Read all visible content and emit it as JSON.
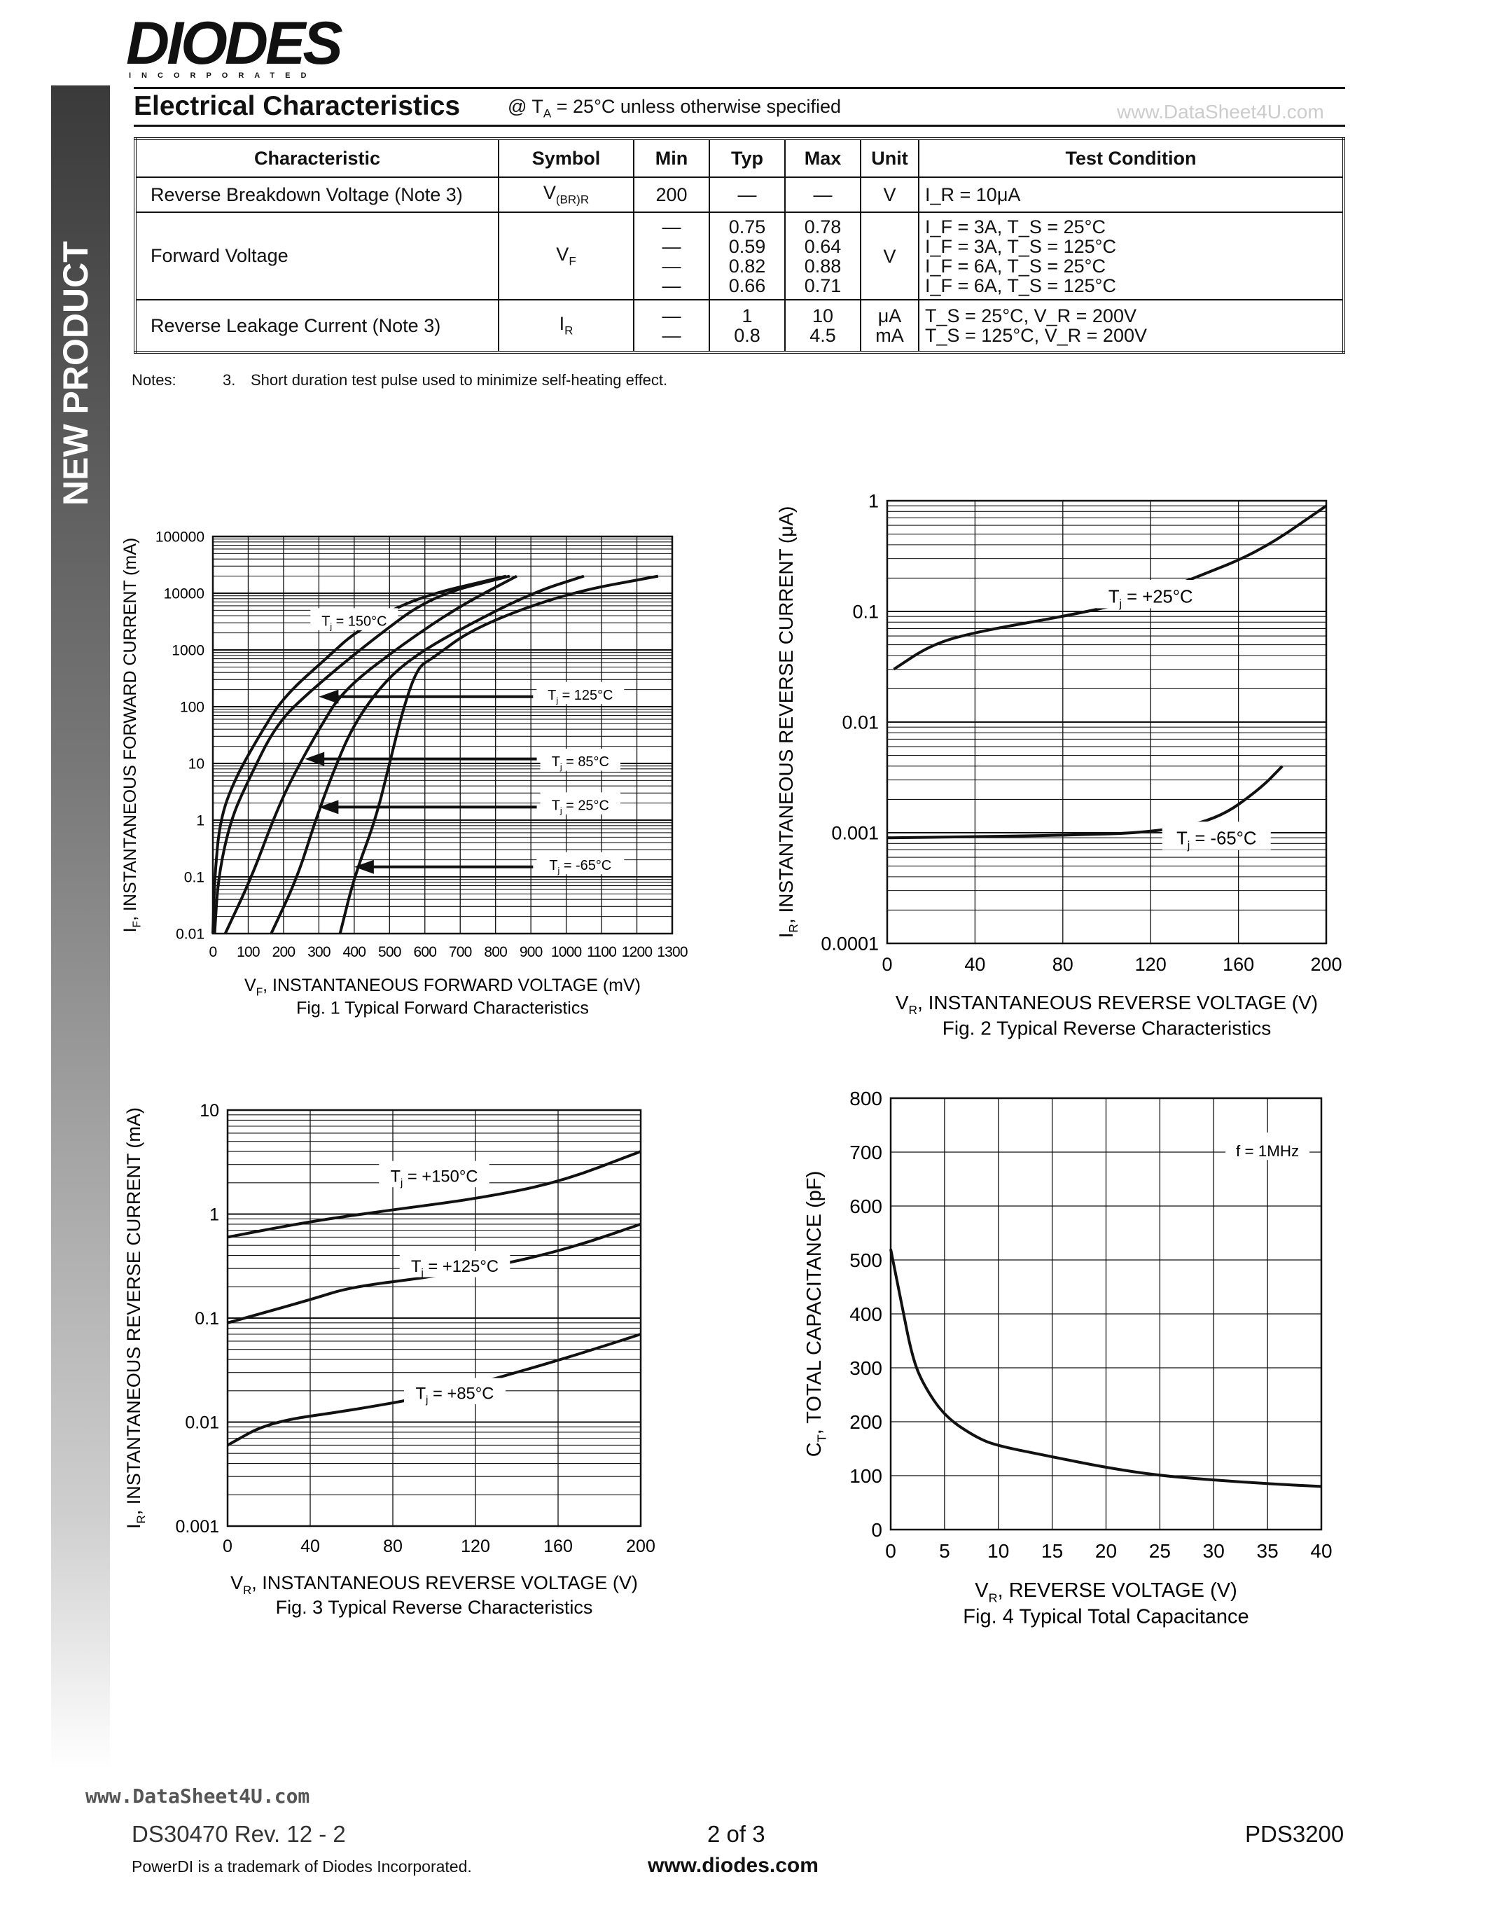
{
  "header": {
    "logo_text": "DIODES",
    "logo_sub": "INCORPORATED",
    "sidebar_label": "NEW PRODUCT",
    "title": "Electrical Characteristics",
    "condition_prefix": "@ T",
    "condition_sub": "A",
    "condition_suffix": " = 25°C unless otherwise specified"
  },
  "watermark": "www.DataSheet4U.com",
  "table": {
    "headers": [
      "Characteristic",
      "Symbol",
      "Min",
      "Typ",
      "Max",
      "Unit",
      "Test Condition"
    ],
    "rows": [
      {
        "characteristic": "Reverse Breakdown Voltage (Note 3)",
        "symbol": "V",
        "symbol_sub": "(BR)R",
        "min": "200",
        "typ": "—",
        "max": "—",
        "unit": "V",
        "conditions": [
          "I_R = 10μA"
        ]
      },
      {
        "characteristic": "Forward Voltage",
        "symbol": "V",
        "symbol_sub": "F",
        "min": [
          "—",
          "—",
          "—",
          "—"
        ],
        "typ": [
          "0.75",
          "0.59",
          "0.82",
          "0.66"
        ],
        "max": [
          "0.78",
          "0.64",
          "0.88",
          "0.71"
        ],
        "unit": "V",
        "conditions": [
          "I_F = 3A, T_S =  25°C",
          "I_F = 3A, T_S = 125°C",
          "I_F = 6A, T_S =  25°C",
          "I_F = 6A, T_S = 125°C"
        ]
      },
      {
        "characteristic": "Reverse Leakage Current (Note 3)",
        "symbol": "I",
        "symbol_sub": "R",
        "min": [
          "—",
          "—"
        ],
        "typ": [
          "1",
          "0.8"
        ],
        "max": [
          "10",
          "4.5"
        ],
        "unit": [
          "μA",
          "mA"
        ],
        "conditions": [
          "T_S =  25°C, V_R = 200V",
          "T_S = 125°C, V_R = 200V"
        ]
      }
    ]
  },
  "notes": {
    "label": "Notes:",
    "number": "3.",
    "text": "Short duration test pulse used to minimize self-heating effect."
  },
  "chart_data": [
    {
      "type": "line",
      "title": "Fig. 1  Typical Forward Characteristics",
      "xlabel": "V_F, INSTANTANEOUS FORWARD VOLTAGE (mV)",
      "ylabel": "I_F, INSTANTANEOUS FORWARD CURRENT (mA)",
      "xlim": [
        0,
        1300
      ],
      "ylim": [
        0.01,
        100000
      ],
      "yscale": "log",
      "grid": true,
      "xticks": [
        "0",
        "100",
        "200",
        "300",
        "400",
        "500",
        "600",
        "700",
        "800",
        "900",
        "1000",
        "1100",
        "1200",
        "1300"
      ],
      "yticks": [
        "0.01",
        "0.1",
        "1",
        "10",
        "100",
        "1000",
        "10000",
        "100000"
      ],
      "series": [
        {
          "name": "Tj = 150°C",
          "x": [
            0,
            5,
            20,
            60,
            130,
            200,
            330,
            400,
            560,
            830
          ],
          "y": [
            0.01,
            0.1,
            1,
            5,
            30,
            150,
            800,
            2000,
            8000,
            20000
          ]
        },
        {
          "name": "Tj = 125°C",
          "x": [
            5,
            15,
            50,
            100,
            180,
            280,
            450,
            620,
            840
          ],
          "y": [
            0.01,
            0.1,
            1,
            5,
            50,
            200,
            1500,
            9000,
            20000
          ]
        },
        {
          "name": "Tj = 85°C",
          "x": [
            35,
            110,
            170,
            220,
            300,
            370,
            540,
            700,
            860
          ],
          "y": [
            0.01,
            0.1,
            1,
            5,
            40,
            200,
            1300,
            6000,
            20000
          ]
        },
        {
          "name": "Tj = 25°C",
          "x": [
            165,
            240,
            290,
            350,
            400,
            480,
            560,
            680,
            900,
            1050
          ],
          "y": [
            0.01,
            0.1,
            1,
            10,
            50,
            250,
            700,
            2000,
            10000,
            20000
          ]
        },
        {
          "name": "Tj = -65°C",
          "x": [
            360,
            400,
            460,
            500,
            540,
            580,
            620,
            740,
            1000,
            1260
          ],
          "y": [
            0.01,
            0.1,
            1,
            10,
            100,
            500,
            700,
            2500,
            10000,
            20000
          ]
        }
      ]
    },
    {
      "type": "line",
      "title": "Fig. 2 Typical Reverse Characteristics",
      "xlabel": "V_R, INSTANTANEOUS REVERSE VOLTAGE (V)",
      "ylabel": "I_R, INSTANTANEOUS REVERSE CURRENT (μA)",
      "xlim": [
        0,
        200
      ],
      "ylim": [
        0.0001,
        1
      ],
      "yscale": "log",
      "grid": true,
      "xticks": [
        "0",
        "40",
        "80",
        "120",
        "160",
        "200"
      ],
      "yticks": [
        "0.0001",
        "0.001",
        "0.01",
        "0.1",
        "1"
      ],
      "series": [
        {
          "name": "Tj = +25°C",
          "x": [
            3,
            20,
            40,
            80,
            110,
            140,
            170,
            200
          ],
          "y": [
            0.03,
            0.05,
            0.065,
            0.09,
            0.12,
            0.2,
            0.35,
            0.9
          ]
        },
        {
          "name": "Tj = -65°C",
          "x": [
            0,
            40,
            80,
            120,
            150,
            170,
            180
          ],
          "y": [
            0.0009,
            0.00092,
            0.00095,
            0.001,
            0.0013,
            0.0025,
            0.004
          ]
        }
      ]
    },
    {
      "type": "line",
      "title": "Fig. 3 Typical Reverse Characteristics",
      "xlabel": "V_R, INSTANTANEOUS REVERSE VOLTAGE (V)",
      "ylabel": "I_R, INSTANTANEOUS REVERSE CURRENT (mA)",
      "xlim": [
        0,
        200
      ],
      "ylim": [
        0.001,
        10
      ],
      "yscale": "log",
      "grid": true,
      "xticks": [
        "0",
        "40",
        "80",
        "120",
        "160",
        "200"
      ],
      "yticks": [
        "0.001",
        "0.01",
        "0.1",
        "1",
        "10"
      ],
      "series": [
        {
          "name": "Tj = +150°C",
          "x": [
            0,
            40,
            80,
            120,
            160,
            200
          ],
          "y": [
            0.6,
            0.85,
            1.1,
            1.4,
            2,
            4
          ]
        },
        {
          "name": "Tj = +125°C",
          "x": [
            0,
            40,
            60,
            100,
            140,
            170,
            200
          ],
          "y": [
            0.09,
            0.15,
            0.2,
            0.25,
            0.35,
            0.5,
            0.8
          ]
        },
        {
          "name": "Tj = +85°C",
          "x": [
            0,
            20,
            60,
            100,
            140,
            170,
            200
          ],
          "y": [
            0.006,
            0.01,
            0.013,
            0.018,
            0.03,
            0.045,
            0.07
          ]
        }
      ]
    },
    {
      "type": "line",
      "title": "Fig. 4  Typical Total Capacitance",
      "xlabel": "V_R, REVERSE VOLTAGE (V)",
      "ylabel": "C_T, TOTAL CAPACITANCE (pF)",
      "xlim": [
        0,
        40
      ],
      "ylim": [
        0,
        800
      ],
      "yscale": "linear",
      "grid": true,
      "xticks": [
        "0",
        "5",
        "10",
        "15",
        "20",
        "25",
        "30",
        "35",
        "40"
      ],
      "yticks": [
        "0",
        "100",
        "200",
        "300",
        "400",
        "500",
        "600",
        "700",
        "800"
      ],
      "annotation": "f = 1MHz",
      "series": [
        {
          "x": [
            0,
            1,
            2,
            3,
            5,
            8,
            10,
            15,
            20,
            25,
            30,
            35,
            40
          ],
          "y": [
            520,
            420,
            320,
            270,
            210,
            170,
            155,
            135,
            115,
            100,
            92,
            85,
            80
          ]
        }
      ]
    }
  ],
  "footer": {
    "doc": "DS30470 Rev. 12 - 2",
    "page": "2 of 3",
    "part": "PDS3200",
    "trademark": "PowerDI is a trademark of Diodes Incorporated.",
    "url": "www.diodes.com"
  }
}
